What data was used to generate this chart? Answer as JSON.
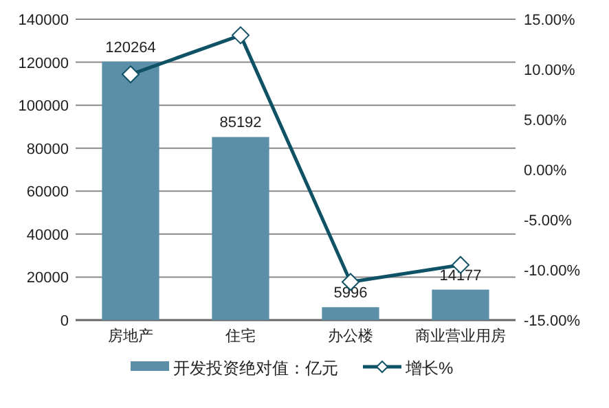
{
  "chart_data": {
    "type": "bar",
    "categories": [
      "房地产",
      "住宅",
      "办公楼",
      "商业营业用房"
    ],
    "series": [
      {
        "name": "开发投资绝对值：亿元",
        "color": "#5b8fa8",
        "values": [
          120264,
          85192,
          5996,
          14177
        ],
        "value_labels": [
          "120264",
          "85192",
          "5996",
          "14177"
        ]
      },
      {
        "name": "增长%",
        "type": "line",
        "axis": "y2",
        "color": "#0f5266",
        "values": [
          9.5,
          13.4,
          -11.2,
          -9.5
        ]
      }
    ],
    "marker": "diamond",
    "line_style": "solid",
    "ylim": [
      0,
      140000
    ],
    "yticks": [
      0,
      20000,
      40000,
      60000,
      80000,
      100000,
      120000,
      140000
    ],
    "y2lim": [
      -15,
      15
    ],
    "y2ticks": [
      {
        "value": -15,
        "label": "-15.00%"
      },
      {
        "value": -10,
        "label": "-10.00%"
      },
      {
        "value": -5,
        "label": "-5.00%"
      },
      {
        "value": 0,
        "label": "0.00%"
      },
      {
        "value": 5,
        "label": "5.00%"
      },
      {
        "value": 10,
        "label": "10.00%"
      },
      {
        "value": 15,
        "label": "15.00%"
      }
    ],
    "grid": "y",
    "legend": "bottom"
  }
}
